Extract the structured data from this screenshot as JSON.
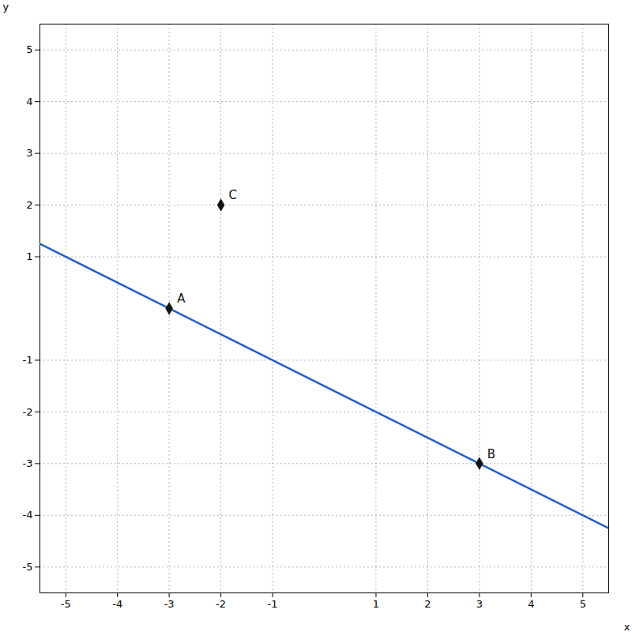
{
  "chart_data": {
    "type": "scatter",
    "xlabel": "x",
    "ylabel": "y",
    "xlim": [
      -5.5,
      5.5
    ],
    "ylim": [
      -5.5,
      5.5
    ],
    "xticks": [
      -5,
      -4,
      -3,
      -2,
      -1,
      1,
      2,
      3,
      4,
      5
    ],
    "yticks": [
      -5,
      -4,
      -3,
      -2,
      -1,
      1,
      2,
      3,
      4,
      5
    ],
    "grid": true,
    "series": [
      {
        "type": "line",
        "color": "#1a5fcc",
        "x": [
          -5.5,
          5.5
        ],
        "values": [
          1.25,
          -4.25
        ]
      },
      {
        "type": "scatter",
        "color": "#111111",
        "marker": "diamond",
        "x": [
          -3,
          3,
          -2
        ],
        "values": [
          0,
          -3,
          2
        ],
        "labels": [
          "A",
          "B",
          "C"
        ]
      }
    ]
  }
}
